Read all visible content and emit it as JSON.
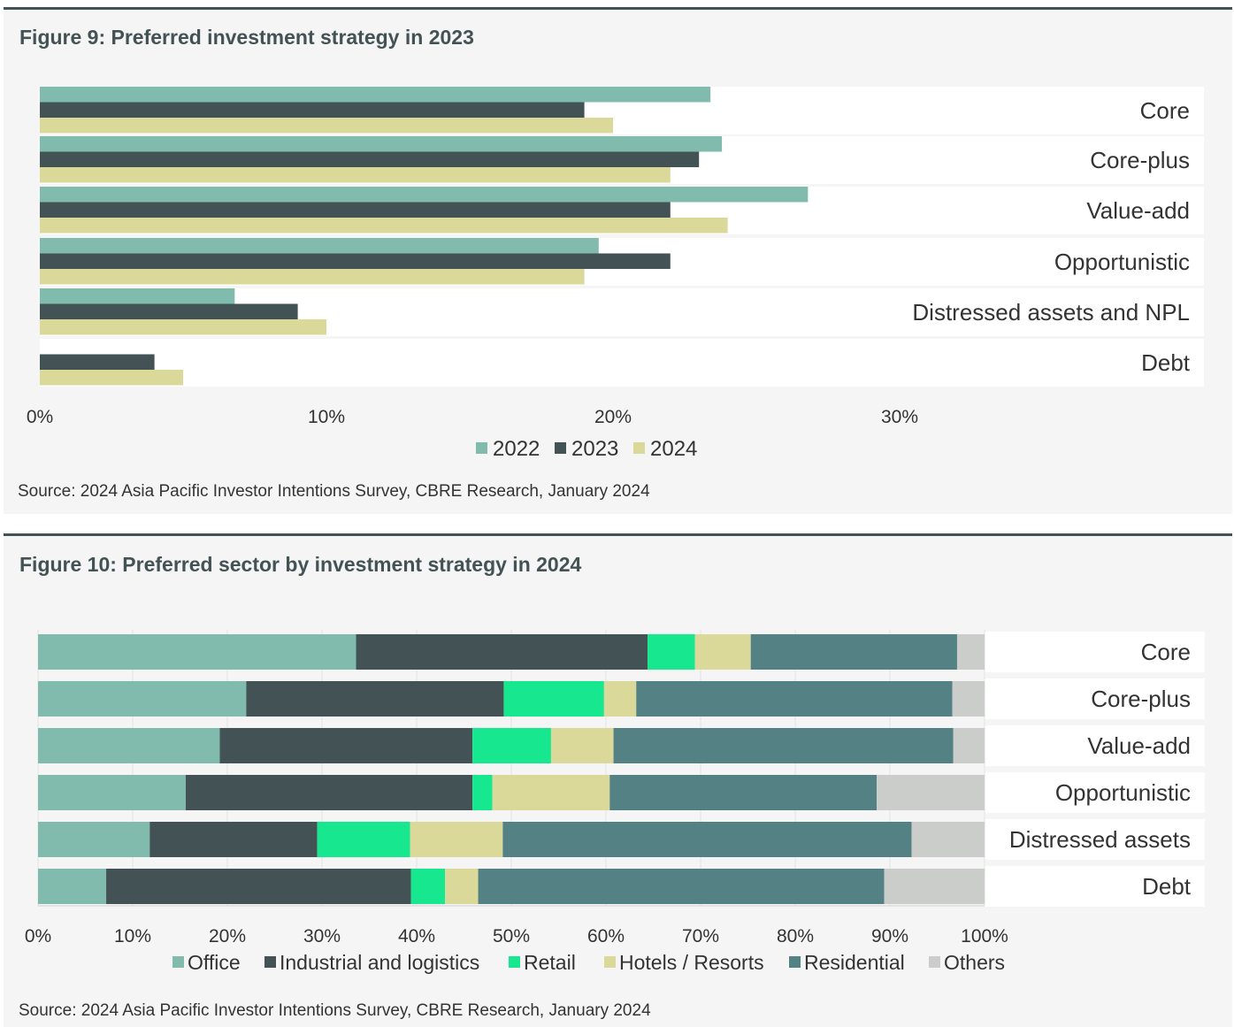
{
  "figures": [
    {
      "title": "Figure 9:  Preferred investment strategy in 2023",
      "source": "Source: 2024 Asia Pacific Investor Intentions Survey, CBRE Research, January 2024"
    },
    {
      "title": "Figure 10:  Preferred sector by investment strategy in 2024",
      "source": "Source: 2024 Asia Pacific Investor Intentions Survey, CBRE Research, January 2024"
    }
  ],
  "chart_data": [
    {
      "type": "bar",
      "orientation": "horizontal",
      "title": "Figure 9:  Preferred investment strategy in 2023",
      "categories": [
        "Core",
        "Core-plus",
        "Value-add",
        "Opportunistic",
        "Distressed assets and NPL",
        "Debt"
      ],
      "series": [
        {
          "name": "2022",
          "color": "#80bbad",
          "values": [
            23.4,
            23.8,
            26.8,
            19.5,
            6.8,
            0
          ]
        },
        {
          "name": "2023",
          "color": "#435254",
          "values": [
            19.0,
            23.0,
            22.0,
            22.0,
            9.0,
            4.0
          ]
        },
        {
          "name": "2024",
          "color": "#dbd99a",
          "values": [
            20.0,
            22.0,
            24.0,
            19.0,
            10.0,
            5.0
          ]
        }
      ],
      "xlim": [
        0,
        40
      ],
      "xticks": [
        "0%",
        "10%",
        "20%",
        "30%"
      ],
      "legend": "bottom"
    },
    {
      "type": "bar",
      "orientation": "horizontal",
      "stacked": true,
      "title": "Figure 10:  Preferred sector by investment strategy in 2024",
      "categories": [
        "Core",
        "Core-plus",
        "Value-add",
        "Opportunistic",
        "Distressed assets",
        "Debt"
      ],
      "series": [
        {
          "name": "Office",
          "color": "#80bbad",
          "values": [
            33.6,
            22.0,
            19.2,
            15.6,
            11.8,
            7.2
          ]
        },
        {
          "name": "Industrial and logistics",
          "color": "#435254",
          "values": [
            30.8,
            27.2,
            26.7,
            30.3,
            17.7,
            32.2
          ]
        },
        {
          "name": "Retail",
          "color": "#17e88f",
          "values": [
            5.0,
            10.6,
            8.3,
            2.1,
            9.8,
            3.6
          ]
        },
        {
          "name": "Hotels / Resorts",
          "color": "#dbd99a",
          "values": [
            5.9,
            3.4,
            6.6,
            12.4,
            9.8,
            3.5
          ]
        },
        {
          "name": "Residential",
          "color": "#538184",
          "values": [
            21.8,
            33.4,
            35.9,
            28.2,
            43.2,
            42.9
          ]
        },
        {
          "name": "Others",
          "color": "#cbcdcb",
          "values": [
            2.9,
            3.4,
            3.3,
            11.4,
            7.7,
            10.6
          ]
        }
      ],
      "xlim": [
        0,
        100
      ],
      "xticks": [
        "0%",
        "10%",
        "20%",
        "30%",
        "40%",
        "50%",
        "60%",
        "70%",
        "80%",
        "90%",
        "100%"
      ],
      "legend": "bottom"
    }
  ]
}
